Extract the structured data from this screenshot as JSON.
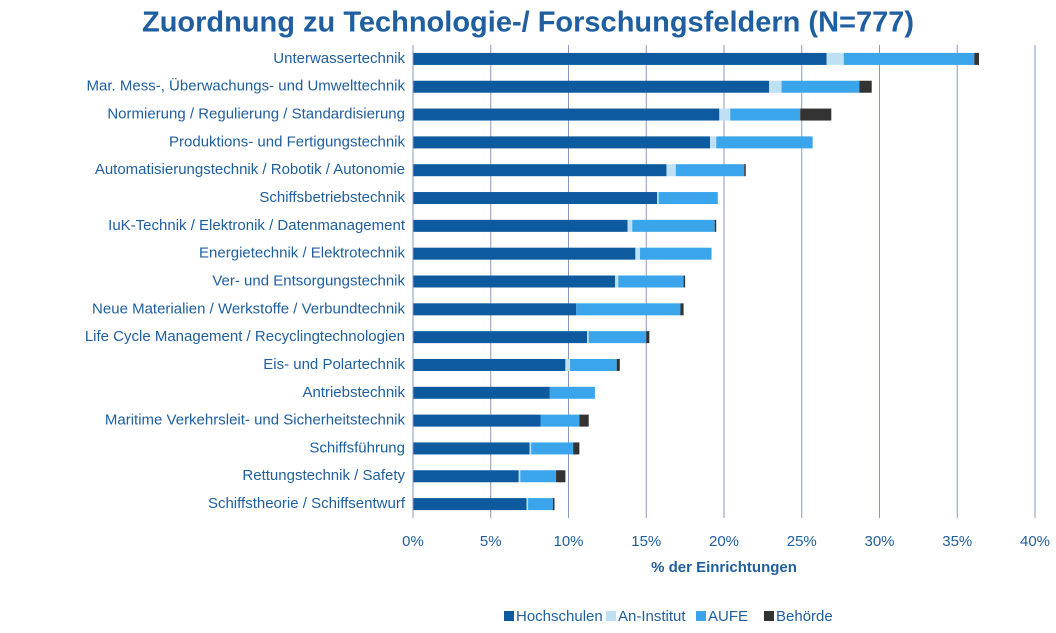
{
  "chart_data": {
    "type": "bar",
    "orientation": "horizontal",
    "stacked": true,
    "title": "Zuordnung zu Technologie-/ Forschungsfeldern (N=777)",
    "x_label": "% der Einrichtungen",
    "categories": [
      "Unterwassertechnik",
      "Mar. Mess-, Überwachungs- und Umwelttechnik",
      "Normierung / Regulierung / Standardisierung",
      "Produktions- und Fertigungstechnik",
      "Automatisierungstechnik / Robotik / Autonomie",
      "Schiffsbetriebstechnik",
      "IuK-Technik / Elektronik / Datenmanagement",
      "Energietechnik / Elektrotechnik",
      "Ver- und Entsorgungstechnik",
      "Neue Materialien / Werkstoffe / Verbundtechnik",
      "Life Cycle Management / Recyclingtechnologien",
      "Eis- und Polartechnik",
      "Antriebstechnik",
      "Maritime Verkehrsleit- und Sicherheitstechnik",
      "Schiffsführung",
      "Rettungstechnik / Safety",
      "Schiffstheorie / Schiffsentwurf"
    ],
    "series": [
      {
        "name": "Hochschulen",
        "color": "#0d5a9e",
        "values": [
          26.6,
          22.9,
          19.7,
          19.1,
          16.3,
          15.7,
          13.8,
          14.3,
          13.0,
          10.5,
          11.2,
          9.8,
          8.8,
          8.2,
          7.5,
          6.8,
          7.3
        ]
      },
      {
        "name": "An-Institut",
        "color": "#bde0f5",
        "values": [
          1.1,
          0.8,
          0.7,
          0.4,
          0.6,
          0.1,
          0.3,
          0.3,
          0.2,
          0,
          0.1,
          0.3,
          0,
          0,
          0.1,
          0.1,
          0.1
        ]
      },
      {
        "name": "AUFE",
        "color": "#3aa5ea",
        "values": [
          8.4,
          5.0,
          4.5,
          6.2,
          4.4,
          3.8,
          5.3,
          4.6,
          4.2,
          6.7,
          3.7,
          3.0,
          2.9,
          2.5,
          2.7,
          2.3,
          1.6
        ]
      },
      {
        "name": "Behörde",
        "color": "#333333",
        "values": [
          0.3,
          0.8,
          2.0,
          0,
          0.1,
          0,
          0.1,
          0,
          0.1,
          0.2,
          0.2,
          0.2,
          0,
          0.6,
          0.4,
          0.6,
          0.1
        ]
      }
    ],
    "xlim": [
      0,
      40
    ],
    "xticks": [
      {
        "value": 0,
        "label": "0%"
      },
      {
        "value": 5,
        "label": "5%"
      },
      {
        "value": 10,
        "label": "10%"
      },
      {
        "value": 15,
        "label": "15%"
      },
      {
        "value": 20,
        "label": "20%"
      },
      {
        "value": 25,
        "label": "25%"
      },
      {
        "value": 30,
        "label": "30%"
      },
      {
        "value": 35,
        "label": "35%"
      },
      {
        "value": 40,
        "label": "40%"
      }
    ],
    "grid": true,
    "legend": "bottom"
  }
}
